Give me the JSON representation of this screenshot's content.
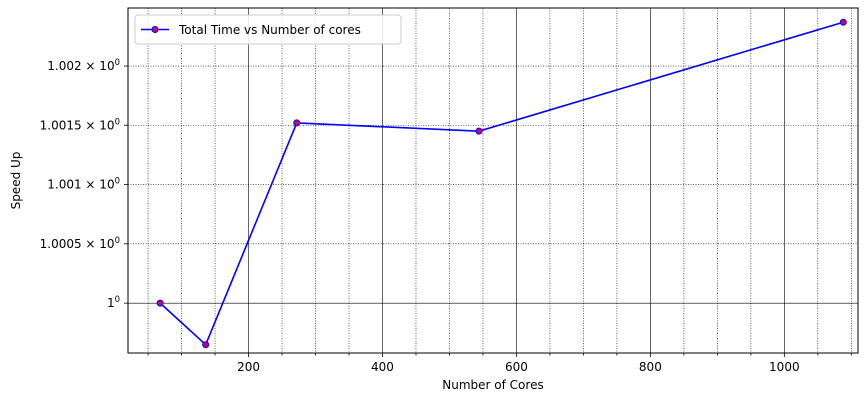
{
  "chart_data": {
    "type": "line",
    "title": "",
    "xlabel": "Number of Cores",
    "ylabel": "Speed Up",
    "y_scale": "log",
    "grid": true,
    "xlim": [
      20,
      1110
    ],
    "ylim": [
      0.99958,
      1.00249
    ],
    "x_ticks": [
      200,
      400,
      600,
      800,
      1000
    ],
    "x_tick_labels": [
      "200",
      "400",
      "600",
      "800",
      "1000"
    ],
    "x_minor_ticks": [
      50,
      100,
      150,
      250,
      300,
      350,
      450,
      500,
      550,
      650,
      700,
      750,
      850,
      900,
      950,
      1050,
      1100
    ],
    "y_ticks": [
      1.0,
      1.0005,
      1.001,
      1.0015,
      1.002
    ],
    "y_tick_labels": [
      {
        "mantissa": "1",
        "exponent": "0"
      },
      {
        "mantissa": "1.0005 × 10",
        "exponent": "0"
      },
      {
        "mantissa": "1.001 × 10",
        "exponent": "0"
      },
      {
        "mantissa": "1.0015 × 10",
        "exponent": "0"
      },
      {
        "mantissa": "1.002 × 10",
        "exponent": "0"
      }
    ],
    "legend": {
      "position": "top-left",
      "entries": [
        "Total Time vs Number of cores"
      ]
    },
    "series": [
      {
        "name": "Total Time vs Number of cores",
        "color": "#0000ff",
        "marker_color": "#cc0066",
        "x": [
          68,
          136,
          272,
          544,
          1088
        ],
        "y": [
          1.0,
          0.99965,
          1.00152,
          1.00145,
          1.00237
        ]
      }
    ]
  }
}
